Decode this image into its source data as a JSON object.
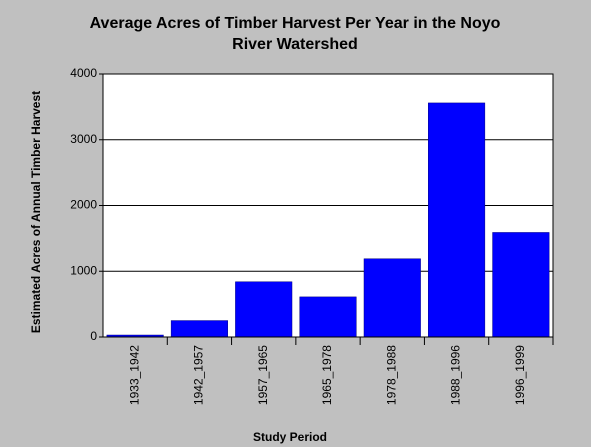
{
  "chart_data": {
    "type": "bar",
    "title": "Average Acres of Timber Harvest Per Year in the Noyo River Watershed",
    "x_label": "Study Period",
    "y_label": "Estimated Acres of Annual Timber Harvest",
    "categories": [
      "1933_1942",
      "1942_1957",
      "1957_1965",
      "1965_1978",
      "1978_1988",
      "1988_1996",
      "1996_1999"
    ],
    "values": [
      30,
      250,
      840,
      610,
      1190,
      3560,
      1590
    ],
    "color": "#0000ff",
    "ylim": [
      0,
      4000
    ],
    "yticks": [
      0,
      1000,
      2000,
      3000,
      4000
    ],
    "grid": true
  }
}
